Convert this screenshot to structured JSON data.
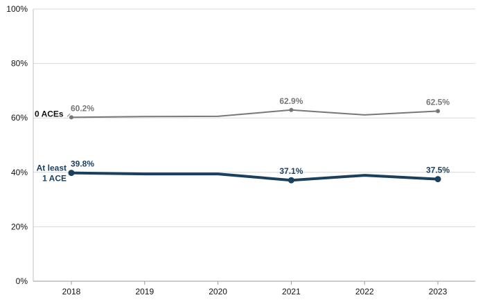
{
  "chart_data": {
    "type": "line",
    "title": "",
    "xlabel": "",
    "ylabel": "",
    "x": [
      "2018",
      "2019",
      "2020",
      "2021",
      "2022",
      "2023"
    ],
    "ylim": [
      0,
      100
    ],
    "yticks": [
      0,
      20,
      40,
      60,
      80,
      100
    ],
    "ytick_labels": [
      "0%",
      "20%",
      "40%",
      "60%",
      "80%",
      "100%"
    ],
    "grid": "horizontal",
    "legend": "none (series labeled inline at left)",
    "series": [
      {
        "name": "0 ACEs",
        "color": "#777777",
        "values": [
          60.2,
          60.5,
          60.6,
          62.9,
          61.1,
          62.5
        ],
        "data_labels": [
          {
            "index": 0,
            "text": "60.2%"
          },
          {
            "index": 3,
            "text": "62.9%"
          },
          {
            "index": 5,
            "text": "62.5%"
          }
        ]
      },
      {
        "name": "At least 1 ACE",
        "name_lines": [
          "At least",
          "1 ACE"
        ],
        "color": "#1b3f5e",
        "values": [
          39.8,
          39.4,
          39.4,
          37.1,
          38.9,
          37.5
        ],
        "data_labels": [
          {
            "index": 0,
            "text": "39.8%"
          },
          {
            "index": 3,
            "text": "37.1%"
          },
          {
            "index": 5,
            "text": "37.5%"
          }
        ]
      }
    ]
  }
}
